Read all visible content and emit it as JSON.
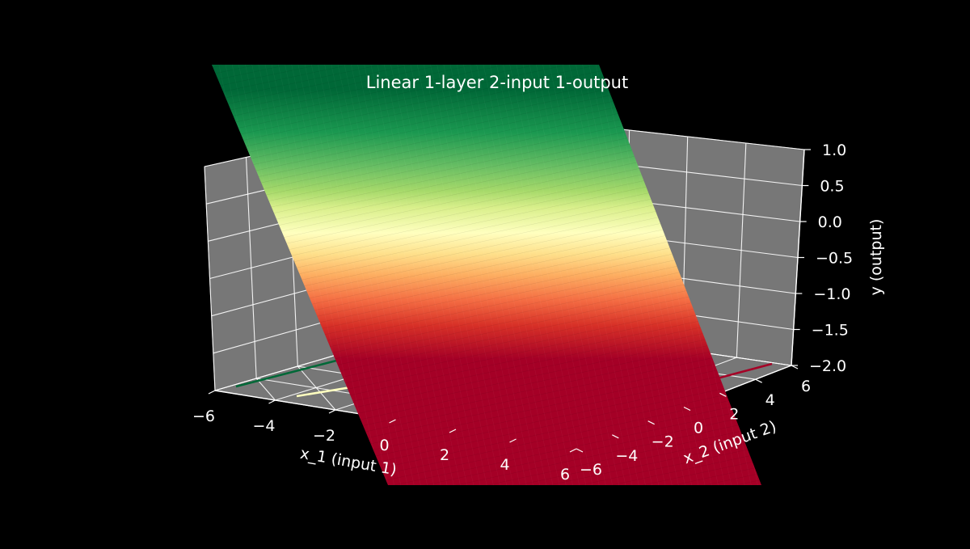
{
  "figure": {
    "background": "#000000",
    "pane_color": "#777777",
    "grid_color": "#ffffff",
    "text_color": "#ffffff"
  },
  "chart_data": {
    "type": "surface",
    "title": "Linear 1-layer 2-input 1-output",
    "xlabel": "x_1 (input 1)",
    "ylabel": "x_2 (input 2)",
    "zlabel": "y (output)",
    "xlim": [
      -6,
      6
    ],
    "ylim": [
      -6,
      6
    ],
    "zlim": [
      -2.0,
      1.0
    ],
    "x_ticks": [
      "−6",
      "−4",
      "−2",
      "0",
      "2",
      "4",
      "6"
    ],
    "y_ticks": [
      "−6",
      "−4",
      "−2",
      "0",
      "2",
      "4",
      "6"
    ],
    "z_ticks": [
      "−2.0",
      "−1.5",
      "−1.0",
      "−0.5",
      "0.0",
      "0.5",
      "1.0"
    ],
    "colormap": "RdYlGn",
    "colormap_stops": [
      "#a50026",
      "#d73027",
      "#f46d43",
      "#fdae61",
      "#fee08b",
      "#ffffbf",
      "#d9ef8b",
      "#a6d96a",
      "#66bd63",
      "#1a9850",
      "#006837"
    ],
    "contour_colors": [
      "#006837",
      "#ffffbf",
      "#a50026"
    ]
  }
}
